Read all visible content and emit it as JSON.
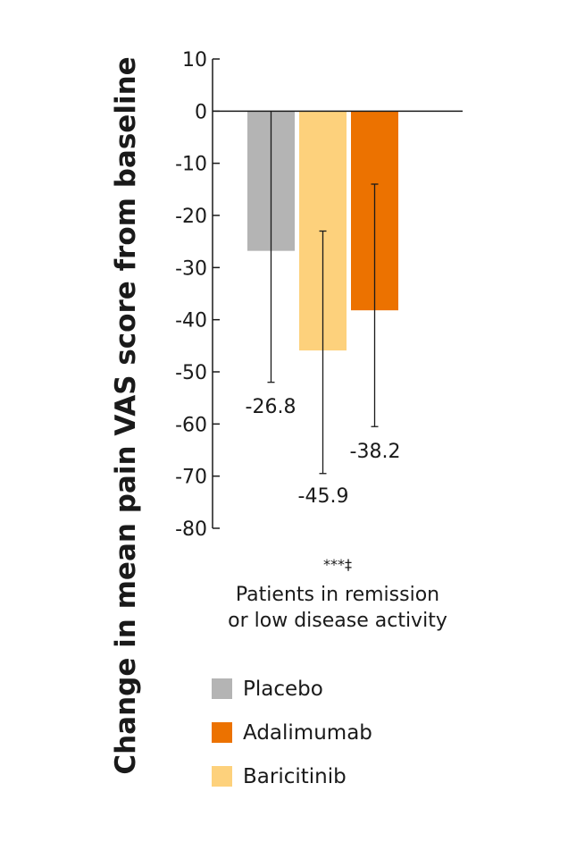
{
  "chart_data": {
    "type": "bar",
    "title": "",
    "ylabel": "Change in mean pain VAS score from baseline",
    "xlabel": "",
    "ylim": [
      -80,
      10
    ],
    "yticks": [
      10,
      0,
      -10,
      -20,
      -30,
      -40,
      -50,
      -60,
      -70,
      -80
    ],
    "category": "Patients in remission or low disease activity",
    "category_lines": [
      "Patients in remission",
      "or low disease activity"
    ],
    "significance": "***‡",
    "series": [
      {
        "name": "Placebo",
        "value": -26.8,
        "label": "-26.8",
        "error_low": -52.0,
        "error_high": 0.0,
        "color": "#b4b4b4"
      },
      {
        "name": "Baricitinib",
        "value": -45.9,
        "label": "-45.9",
        "error_low": -69.5,
        "error_high": -23.0,
        "color": "#fdd17c"
      },
      {
        "name": "Adalimumab",
        "value": -38.2,
        "label": "-38.2",
        "error_low": -60.5,
        "error_high": -14.0,
        "color": "#ec7200"
      }
    ],
    "legend": [
      {
        "name": "Placebo",
        "color": "#b4b4b4"
      },
      {
        "name": "Adalimumab",
        "color": "#ec7200"
      },
      {
        "name": "Baricitinib",
        "color": "#fdd17c"
      }
    ]
  }
}
